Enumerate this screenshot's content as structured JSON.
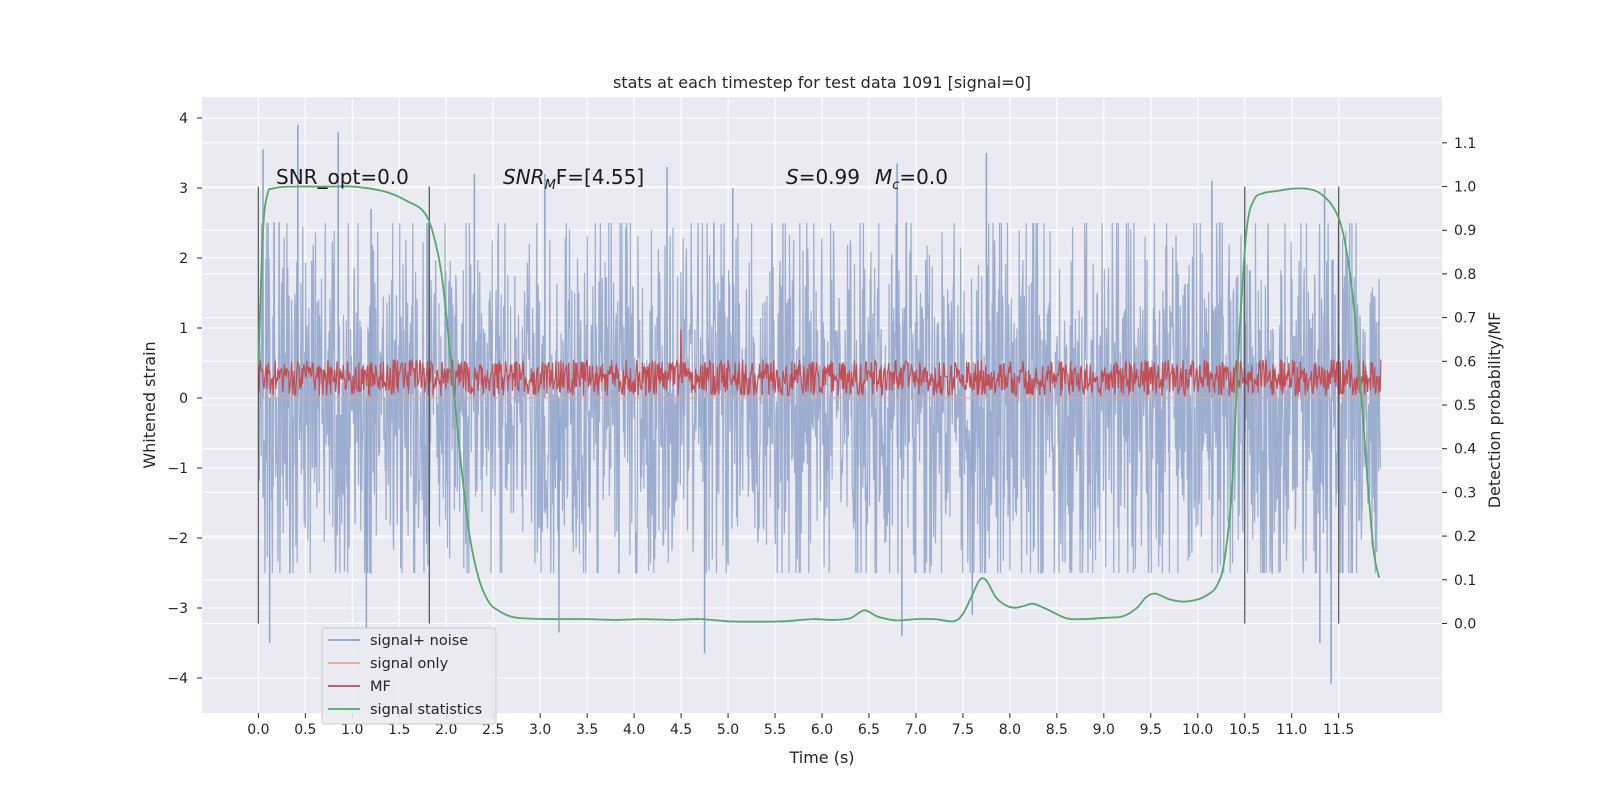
{
  "chart_data": {
    "type": "line",
    "title": "stats at each timestep for test data 1091 [signal=0]",
    "xlabel": "Time (s)",
    "ylabel": "Whitened strain",
    "y2label": "Detection probability/MF",
    "xlim": [
      -0.6,
      12.6
    ],
    "ylim": [
      -4.5,
      4.3
    ],
    "y2lim": [
      -0.205,
      1.205
    ],
    "x_ticks": [
      0.0,
      0.5,
      1.0,
      1.5,
      2.0,
      2.5,
      3.0,
      3.5,
      4.0,
      4.5,
      5.0,
      5.5,
      6.0,
      6.5,
      7.0,
      7.5,
      8.0,
      8.5,
      9.0,
      9.5,
      10.0,
      10.5,
      11.0,
      11.5
    ],
    "x_tick_labels": [
      "0.0",
      "0.5",
      "1.0",
      "1.5",
      "2.0",
      "2.5",
      "3.0",
      "3.5",
      "4.0",
      "4.5",
      "5.0",
      "5.5",
      "6.0",
      "6.5",
      "7.0",
      "7.5",
      "8.0",
      "8.5",
      "9.0",
      "9.5",
      "10.0",
      "10.5",
      "11.0",
      "11.5"
    ],
    "y_ticks": [
      4,
      3,
      2,
      1,
      0,
      -1,
      -2,
      -3,
      -4
    ],
    "y_tick_labels": [
      "4",
      "3",
      "2",
      "1",
      "0",
      "−1",
      "−2",
      "−3",
      "−4"
    ],
    "y2_ticks": [
      0.0,
      0.1,
      0.2,
      0.3,
      0.4,
      0.5,
      0.6,
      0.7,
      0.8,
      0.9,
      1.0,
      1.1
    ],
    "y2_tick_labels": [
      "0.0",
      "0.1",
      "0.2",
      "0.3",
      "0.4",
      "0.5",
      "0.6",
      "0.7",
      "0.8",
      "0.9",
      "1.0",
      "1.1"
    ],
    "grid": true,
    "legend_position": "lower-left",
    "legend": [
      {
        "name": "signal+ noise",
        "color": "#8ea2c9"
      },
      {
        "name": "signal only",
        "color": "#e9a98a"
      },
      {
        "name": "MF",
        "color": "#c44e52"
      },
      {
        "name": "signal statistics",
        "color": "#55a868"
      }
    ],
    "annotations": {
      "snr_opt": "SNR_opt=0.0",
      "snr_mf_label": "SNR",
      "snr_mf_sub": "M",
      "snr_mf_tail": "F=[4.55]",
      "s_label": "S",
      "s_value": "=0.99",
      "mc_label": "M",
      "mc_sub": "c",
      "mc_value": "=0.0"
    },
    "vertical_markers": [
      0.0,
      1.82,
      10.5,
      11.5
    ],
    "series": [
      {
        "name": "signal+ noise",
        "x_range": [
          0.0,
          11.95
        ],
        "envelope": [
          -2.5,
          2.5
        ],
        "peaks_high": [
          [
            0.05,
            3.55
          ],
          [
            0.42,
            3.9
          ],
          [
            0.85,
            3.8
          ],
          [
            1.2,
            2.7
          ],
          [
            2.3,
            3.2
          ],
          [
            3.05,
            3.2
          ],
          [
            4.35,
            3.3
          ],
          [
            5.05,
            3.0
          ],
          [
            6.8,
            3.35
          ],
          [
            7.75,
            3.5
          ],
          [
            10.15,
            3.1
          ],
          [
            11.35,
            3.0
          ]
        ],
        "peaks_low": [
          [
            0.12,
            -3.5
          ],
          [
            1.15,
            -3.3
          ],
          [
            3.2,
            -3.35
          ],
          [
            4.75,
            -3.65
          ],
          [
            6.85,
            -3.4
          ],
          [
            7.6,
            -3.1
          ],
          [
            11.3,
            -3.5
          ],
          [
            11.42,
            -4.08
          ]
        ]
      },
      {
        "name": "signal only",
        "x": [
          0.0,
          11.95
        ],
        "y": [
          0.0,
          0.0
        ]
      },
      {
        "name": "MF",
        "x_range": [
          0.0,
          11.95
        ],
        "band": [
          0.03,
          0.55
        ],
        "max": [
          4.5,
          0.98
        ]
      },
      {
        "name": "signal statistics",
        "axis": "right",
        "x": [
          0.0,
          0.05,
          0.1,
          0.15,
          0.25,
          0.4,
          0.6,
          0.8,
          1.0,
          1.2,
          1.4,
          1.6,
          1.75,
          1.85,
          1.95,
          2.05,
          2.15,
          2.25,
          2.35,
          2.45,
          2.55,
          2.7,
          2.9,
          3.2,
          3.5,
          3.8,
          4.1,
          4.4,
          4.7,
          5.0,
          5.3,
          5.6,
          5.9,
          6.1,
          6.3,
          6.45,
          6.6,
          6.8,
          7.0,
          7.2,
          7.4,
          7.5,
          7.6,
          7.68,
          7.75,
          7.85,
          7.95,
          8.05,
          8.15,
          8.25,
          8.4,
          8.6,
          8.8,
          9.0,
          9.2,
          9.35,
          9.45,
          9.55,
          9.7,
          9.85,
          10.0,
          10.1,
          10.2,
          10.28,
          10.36,
          10.44,
          10.52,
          10.6,
          10.7,
          10.85,
          11.0,
          11.15,
          11.3,
          11.45,
          11.55,
          11.65,
          11.72,
          11.8,
          11.87,
          11.93
        ],
        "y": [
          0.59,
          0.9,
          0.985,
          0.995,
          0.999,
          1.0,
          1.0,
          1.0,
          1.0,
          0.995,
          0.985,
          0.965,
          0.945,
          0.9,
          0.8,
          0.6,
          0.38,
          0.2,
          0.1,
          0.05,
          0.03,
          0.015,
          0.011,
          0.01,
          0.01,
          0.008,
          0.01,
          0.008,
          0.01,
          0.005,
          0.004,
          0.005,
          0.01,
          0.008,
          0.012,
          0.03,
          0.015,
          0.007,
          0.01,
          0.01,
          0.005,
          0.022,
          0.065,
          0.1,
          0.098,
          0.06,
          0.042,
          0.036,
          0.04,
          0.045,
          0.032,
          0.012,
          0.01,
          0.013,
          0.016,
          0.035,
          0.06,
          0.068,
          0.055,
          0.05,
          0.055,
          0.065,
          0.085,
          0.14,
          0.3,
          0.65,
          0.9,
          0.97,
          0.985,
          0.99,
          0.995,
          0.995,
          0.985,
          0.95,
          0.89,
          0.75,
          0.58,
          0.35,
          0.17,
          0.105
        ]
      }
    ]
  }
}
